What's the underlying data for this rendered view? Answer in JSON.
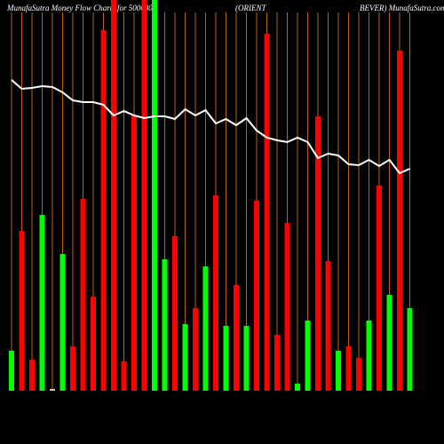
{
  "chart_data": {
    "type": "bar",
    "title_parts": [
      "MunafaSutra  Money Flow  Charts for 500680",
      "(ORIENT",
      "BEVER) MunafaSutra.com"
    ],
    "categories": [
      null,
      null,
      null,
      null,
      null,
      null,
      null,
      null,
      null,
      null,
      null,
      null,
      null,
      null,
      null,
      null,
      null,
      null,
      null,
      null,
      null,
      null,
      null,
      null,
      null,
      null,
      null,
      null,
      null,
      null,
      null,
      null,
      null,
      null,
      null,
      null,
      null,
      null,
      null,
      null
    ],
    "values": [
      45,
      180,
      35,
      198,
      2,
      154,
      50,
      216,
      106,
      406,
      440,
      33,
      310,
      440,
      440,
      148,
      174,
      75,
      93,
      140,
      220,
      73,
      119,
      73,
      214,
      402,
      63,
      189,
      8,
      79,
      309,
      146,
      45,
      50,
      37,
      79,
      231,
      108,
      383,
      93
    ],
    "colors": [
      "#00ff00",
      "#ff0000",
      "#ff0000",
      "#00ff00",
      "#cccccc",
      "#00ff00",
      "#ff0000",
      "#ff0000",
      "#ff0000",
      "#ff0000",
      "#ff0000",
      "#ff0000",
      "#ff0000",
      "#ff0000",
      "#00ff00",
      "#00ff00",
      "#ff0000",
      "#00ff00",
      "#ff0000",
      "#00ff00",
      "#ff0000",
      "#00ff00",
      "#ff0000",
      "#00ff00",
      "#ff0000",
      "#ff0000",
      "#ff0000",
      "#ff0000",
      "#00ff00",
      "#00ff00",
      "#ff0000",
      "#ff0000",
      "#00ff00",
      "#ff0000",
      "#ff0000",
      "#00ff00",
      "#ff0000",
      "#00ff00",
      "#ff0000",
      "#00ff00"
    ],
    "line": {
      "color": "#ffffff",
      "values": [
        350,
        340,
        341,
        343,
        342,
        336,
        327,
        325,
        325,
        322,
        310,
        315,
        310,
        307,
        309,
        309,
        306,
        317,
        310,
        316,
        301,
        306,
        299,
        307,
        293,
        285,
        282,
        280,
        285,
        280,
        262,
        267,
        265,
        255,
        254,
        260,
        253,
        260,
        245,
        250
      ]
    },
    "ylim": [
      0,
      440
    ],
    "grid_color": "#b8620b"
  }
}
